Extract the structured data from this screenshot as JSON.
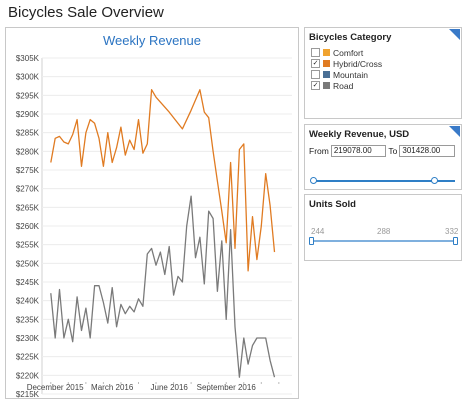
{
  "app": {
    "title": "Bicycles Sale Overview"
  },
  "chart_data": {
    "type": "line",
    "title": "Weekly Revenue",
    "xlabel": "",
    "ylabel": "",
    "ylim": [
      215000,
      305000
    ],
    "y_ticks": [
      215000,
      220000,
      225000,
      230000,
      235000,
      240000,
      245000,
      250000,
      255000,
      260000,
      265000,
      270000,
      275000,
      280000,
      285000,
      290000,
      295000,
      300000,
      305000
    ],
    "y_tick_labels": [
      "$215K",
      "$220K",
      "$225K",
      "$230K",
      "$235K",
      "$240K",
      "$245K",
      "$250K",
      "$255K",
      "$260K",
      "$265K",
      "$270K",
      "$275K",
      "$280K",
      "$285K",
      "$290K",
      "$295K",
      "$300K",
      "$305K"
    ],
    "x_tick_labels": [
      "December 2015",
      "March 2016",
      "June 2016",
      "September 2016"
    ],
    "x_tick_weeks": [
      1,
      14,
      27,
      40
    ],
    "xlim": [
      -2,
      55
    ],
    "grid": true,
    "series": [
      {
        "name": "Hybrid/Cross",
        "color": "#e07b22",
        "x": [
          0,
          1,
          2,
          3,
          4,
          5,
          6,
          7,
          8,
          9,
          10,
          11,
          12,
          13,
          14,
          15,
          16,
          17,
          18,
          19,
          20,
          21,
          22,
          23,
          24,
          27,
          30,
          32,
          34,
          35,
          36,
          37,
          38,
          39,
          40,
          41,
          42,
          43,
          44,
          45,
          46,
          47,
          48,
          49,
          50,
          51
        ],
        "values": [
          277000,
          283500,
          284000,
          282500,
          282000,
          284500,
          288500,
          276000,
          285000,
          288500,
          287500,
          283500,
          276000,
          285000,
          277000,
          281000,
          286500,
          279000,
          283000,
          280500,
          288500,
          279500,
          282000,
          296500,
          294500,
          290500,
          286000,
          291000,
          296500,
          290500,
          289000,
          280000,
          272000,
          264000,
          255500,
          277000,
          254000,
          280500,
          282000,
          248000,
          262500,
          251000,
          260000,
          274000,
          265500,
          253000
        ]
      },
      {
        "name": "Road",
        "color": "#7a7a7a",
        "x": [
          0,
          1,
          2,
          3,
          4,
          5,
          6,
          7,
          8,
          9,
          10,
          11,
          12,
          13,
          14,
          15,
          16,
          17,
          18,
          19,
          20,
          21,
          22,
          23,
          24,
          25,
          26,
          27,
          28,
          29,
          30,
          31,
          32,
          33,
          34,
          35,
          36,
          37,
          38,
          39,
          40,
          41,
          42,
          43,
          44,
          45,
          46,
          47,
          48,
          49,
          50,
          51
        ],
        "values": [
          242000,
          230000,
          243000,
          230000,
          235000,
          229000,
          241000,
          232000,
          238000,
          230000,
          244000,
          244000,
          239500,
          234000,
          243500,
          233000,
          239000,
          236500,
          238500,
          237000,
          240500,
          238500,
          252500,
          254000,
          249500,
          253000,
          247000,
          254500,
          241500,
          246500,
          245000,
          260000,
          268000,
          251500,
          257000,
          244500,
          264000,
          262000,
          242500,
          256000,
          235000,
          259000,
          233000,
          219500,
          230000,
          223000,
          228000,
          230000,
          230000,
          230000,
          224000,
          219500
        ]
      }
    ]
  },
  "category_filter": {
    "title": "Bicycles Category",
    "items": [
      {
        "label": "Comfort",
        "checked": false,
        "color": "#f0a32f"
      },
      {
        "label": "Hybrid/Cross",
        "checked": true,
        "color": "#e07b22"
      },
      {
        "label": "Mountain",
        "checked": false,
        "color": "#4a6f95"
      },
      {
        "label": "Road",
        "checked": true,
        "color": "#7a7a7a"
      }
    ]
  },
  "revenue_filter": {
    "title": "Weekly Revenue, USD",
    "from_label": "From",
    "from_value": "219078.00",
    "to_label": "To",
    "to_value": "301428.00",
    "range_min_fraction": 0.0,
    "range_max_fraction": 0.85
  },
  "units_filter": {
    "title": "Units Sold",
    "min_label": "244",
    "mid_label": "288",
    "max_label": "332",
    "range_min_fraction": 0.0,
    "range_max_fraction": 1.0
  },
  "colors": {
    "accent": "#2f7fc6",
    "title": "#2b74c2"
  }
}
